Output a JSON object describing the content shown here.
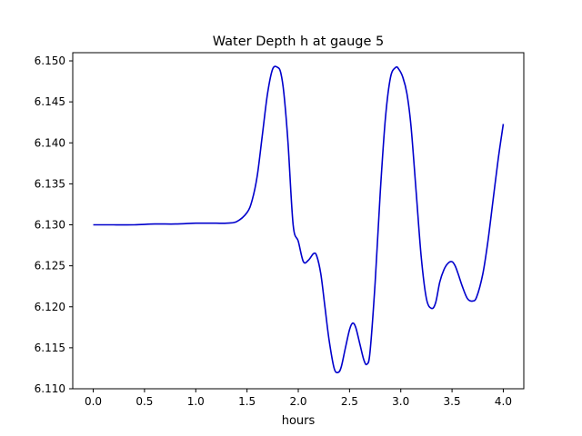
{
  "chart_data": {
    "type": "line",
    "title": "Water Depth h at gauge 5",
    "xlabel": "hours",
    "ylabel": "",
    "xlim": [
      -0.2,
      4.2
    ],
    "ylim": [
      6.11,
      6.151
    ],
    "xticks": [
      0.0,
      0.5,
      1.0,
      1.5,
      2.0,
      2.5,
      3.0,
      3.5,
      4.0
    ],
    "xtick_labels": [
      "0.0",
      "0.5",
      "1.0",
      "1.5",
      "2.0",
      "2.5",
      "3.0",
      "3.5",
      "4.0"
    ],
    "yticks": [
      6.11,
      6.115,
      6.12,
      6.125,
      6.13,
      6.135,
      6.14,
      6.145,
      6.15
    ],
    "ytick_labels": [
      "6.110",
      "6.115",
      "6.120",
      "6.125",
      "6.130",
      "6.135",
      "6.140",
      "6.145",
      "6.150"
    ],
    "grid": false,
    "series": [
      {
        "color": "#0000cc",
        "x": [
          0.0,
          0.2,
          0.4,
          0.6,
          0.8,
          1.0,
          1.1,
          1.2,
          1.3,
          1.4,
          1.5,
          1.55,
          1.6,
          1.65,
          1.7,
          1.75,
          1.8,
          1.83,
          1.86,
          1.9,
          1.95,
          2.0,
          2.05,
          2.1,
          2.15,
          2.18,
          2.22,
          2.26,
          2.3,
          2.35,
          2.39,
          2.42,
          2.46,
          2.5,
          2.53,
          2.56,
          2.6,
          2.64,
          2.67,
          2.7,
          2.75,
          2.8,
          2.85,
          2.9,
          2.95,
          2.98,
          3.02,
          3.06,
          3.1,
          3.15,
          3.2,
          3.25,
          3.3,
          3.34,
          3.38,
          3.42,
          3.46,
          3.5,
          3.53,
          3.56,
          3.6,
          3.65,
          3.7,
          3.74,
          3.8,
          3.85,
          3.9,
          3.95,
          4.0
        ],
        "y": [
          6.13,
          6.13,
          6.13,
          6.1301,
          6.1301,
          6.1302,
          6.1302,
          6.1302,
          6.1302,
          6.1304,
          6.1315,
          6.133,
          6.136,
          6.141,
          6.146,
          6.149,
          6.1492,
          6.1485,
          6.146,
          6.14,
          6.13,
          6.128,
          6.1255,
          6.1257,
          6.1265,
          6.1262,
          6.124,
          6.12,
          6.116,
          6.1125,
          6.112,
          6.1127,
          6.115,
          6.1172,
          6.118,
          6.1175,
          6.1155,
          6.1135,
          6.113,
          6.1145,
          6.123,
          6.134,
          6.143,
          6.148,
          6.1492,
          6.149,
          6.148,
          6.146,
          6.142,
          6.134,
          6.126,
          6.121,
          6.1198,
          6.1205,
          6.123,
          6.1245,
          6.1253,
          6.1255,
          6.125,
          6.124,
          6.1225,
          6.121,
          6.1207,
          6.1212,
          6.124,
          6.128,
          6.133,
          6.138,
          6.1423
        ]
      }
    ]
  }
}
